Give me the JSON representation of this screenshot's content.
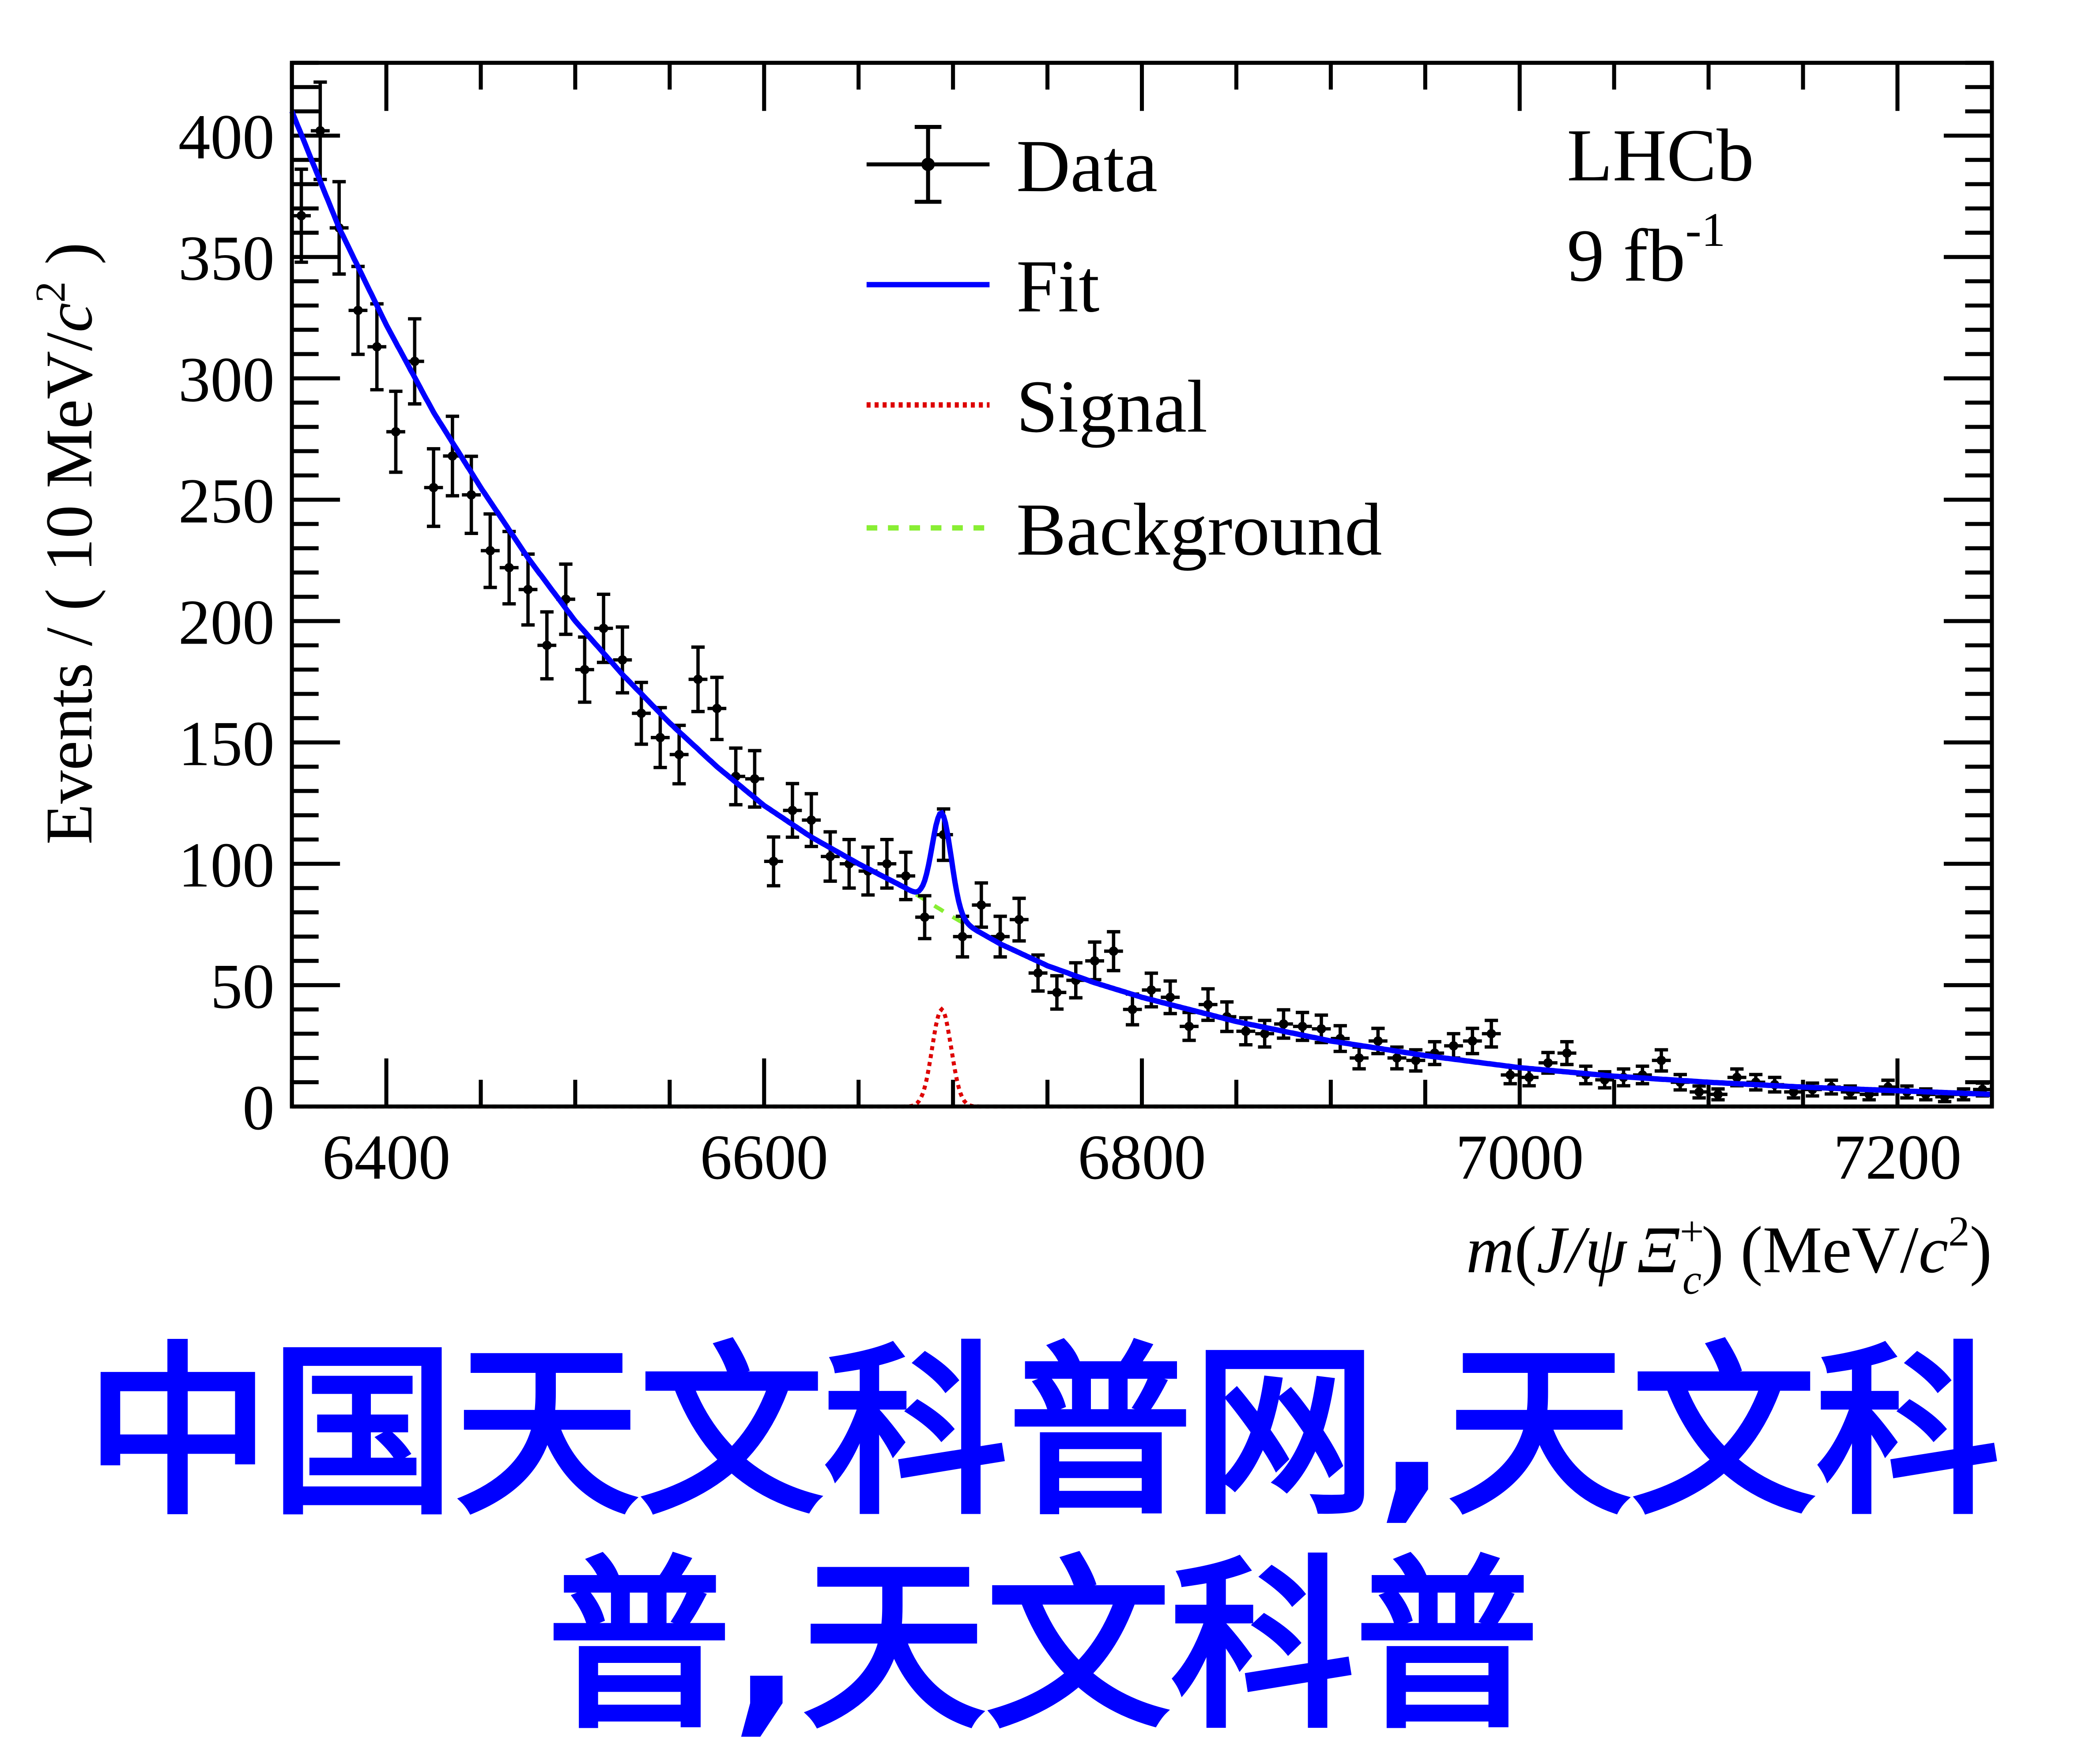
{
  "chart_data": {
    "type": "scatter",
    "xlabel": "m(J/ψ Ξc+) (MeV/c²)",
    "xlabel_parts": {
      "m": "m",
      "open": "(",
      "jpsi": "J/ψ",
      "xi": "Ξ",
      "sup": "+",
      "sub": "c",
      "close": ")",
      "units": " (MeV/",
      "c": "c",
      "two": "2",
      "end": ")"
    },
    "ylabel": "Events / ( 10 MeV/c² )",
    "ylabel_parts": {
      "main": "Events / ( 10 MeV/",
      "c": "c",
      "two": "2",
      "end": " )"
    },
    "xlim": [
      6350,
      7250
    ],
    "ylim": [
      0,
      430
    ],
    "xticks": [
      6400,
      6600,
      6800,
      7000,
      7200
    ],
    "yticks": [
      0,
      50,
      100,
      150,
      200,
      250,
      300,
      350,
      400
    ],
    "experiment": "LHCb",
    "luminosity": "9 fb",
    "luminosity_exp": "-1",
    "legend": [
      {
        "label": "Data",
        "style": "points",
        "color": "#000000"
      },
      {
        "label": "Fit",
        "style": "solid",
        "color": "#0000ff"
      },
      {
        "label": "Signal",
        "style": "dotted",
        "color": "#dd0000"
      },
      {
        "label": "Background",
        "style": "dashed",
        "color": "#88ee33"
      }
    ],
    "bin_width": 10,
    "data": {
      "x": [
        6355,
        6365,
        6375,
        6385,
        6395,
        6405,
        6415,
        6425,
        6435,
        6445,
        6455,
        6465,
        6475,
        6485,
        6495,
        6505,
        6515,
        6525,
        6535,
        6545,
        6555,
        6565,
        6575,
        6585,
        6595,
        6605,
        6615,
        6625,
        6635,
        6645,
        6655,
        6665,
        6675,
        6685,
        6695,
        6705,
        6715,
        6725,
        6735,
        6745,
        6755,
        6765,
        6775,
        6785,
        6795,
        6805,
        6815,
        6825,
        6835,
        6845,
        6855,
        6865,
        6875,
        6885,
        6895,
        6905,
        6915,
        6925,
        6935,
        6945,
        6955,
        6965,
        6975,
        6985,
        6995,
        7005,
        7015,
        7025,
        7035,
        7045,
        7055,
        7065,
        7075,
        7085,
        7095,
        7105,
        7115,
        7125,
        7135,
        7145,
        7155,
        7165,
        7175,
        7185,
        7195,
        7205,
        7215,
        7225,
        7235,
        7245
      ],
      "y": [
        367,
        402,
        362,
        328,
        313,
        278,
        307,
        255,
        268,
        252,
        229,
        222,
        213,
        190,
        209,
        180,
        197,
        184,
        162,
        152,
        145,
        176,
        164,
        136,
        135,
        101,
        122,
        118,
        103,
        100,
        97,
        100,
        95,
        78,
        112,
        70,
        83,
        70,
        77,
        55,
        47,
        52,
        60,
        64,
        40,
        48,
        45,
        33,
        42,
        37,
        31,
        30,
        34,
        33,
        32,
        28,
        20,
        27,
        20,
        19,
        22,
        25,
        27,
        30,
        13,
        12,
        18,
        22,
        13,
        11,
        12,
        13,
        19,
        10,
        6,
        5,
        12,
        10,
        9,
        6,
        7,
        8,
        6,
        5,
        8,
        6,
        5,
        4,
        5,
        7
      ]
    },
    "background": {
      "x": [
        6350,
        6375,
        6400,
        6425,
        6450,
        6475,
        6500,
        6525,
        6550,
        6575,
        6600,
        6625,
        6650,
        6675,
        6700,
        6725,
        6750,
        6775,
        6800,
        6850,
        6900,
        6950,
        7000,
        7050,
        7100,
        7150,
        7200,
        7250
      ],
      "y": [
        410,
        362,
        322,
        286,
        255,
        226,
        200,
        178,
        158,
        140,
        124,
        111,
        100,
        90,
        78,
        67,
        58,
        51,
        45,
        35,
        27,
        21,
        16,
        12.5,
        10,
        8,
        6.5,
        5
      ]
    },
    "signal": {
      "mean": 6694,
      "sigma": 5,
      "peak": 40
    }
  },
  "watermark": {
    "line1": "中国天文科普网,天文科",
    "line2": "普,天文科普"
  }
}
